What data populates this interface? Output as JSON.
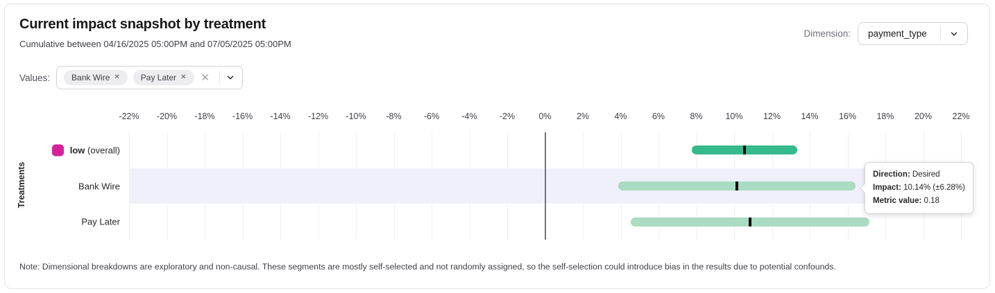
{
  "header": {
    "title": "Current impact snapshot by treatment",
    "subtitle": "Cumulative between 04/16/2025 05:00PM and 07/05/2025 05:00PM",
    "dimension_label": "Dimension:",
    "dimension_value": "payment_type"
  },
  "values_filter": {
    "label": "Values:",
    "chips": [
      "Bank Wire",
      "Pay Later"
    ],
    "remove_glyph": "✕",
    "clear_glyph": "✕"
  },
  "chart_data": {
    "type": "bar",
    "orientation": "horizontal-interval",
    "ylabel": "Treatments",
    "x_axis": {
      "min": -22,
      "max": 22,
      "step": 2,
      "tick_suffix": "%"
    },
    "grid": true,
    "rows": [
      {
        "label": "low",
        "label_suffix": " (overall)",
        "swatch_color": "#D6219C",
        "bar_color": "#34BA8B",
        "low": 7.77,
        "high": 13.33,
        "impact": 10.55,
        "highlighted": false
      },
      {
        "label": "Bank Wire",
        "label_suffix": "",
        "swatch_color": "",
        "bar_color": "#A9DCC2",
        "low": 3.86,
        "high": 16.42,
        "impact": 10.14,
        "highlighted": true
      },
      {
        "label": "Pay Later",
        "label_suffix": "",
        "swatch_color": "",
        "bar_color": "#A9DCC2",
        "low": 4.55,
        "high": 17.15,
        "impact": 10.85,
        "highlighted": false
      }
    ],
    "colors": {
      "zero_line": "#73737b",
      "gridline": "#f0f0f3",
      "highlight_band": "#f0f0fb",
      "marker": "#0a0a0a"
    }
  },
  "tooltip": {
    "direction_label": "Direction:",
    "direction_value": "Desired",
    "impact_label": "Impact:",
    "impact_value": "10.14% (±6.28%)",
    "metric_label": "Metric value:",
    "metric_value": "0.18"
  },
  "note": "Note: Dimensional breakdowns are exploratory and non-causal. These segments are mostly self-selected and not randomly assigned, so the self-selection could introduce bias in the results due to potential confounds."
}
